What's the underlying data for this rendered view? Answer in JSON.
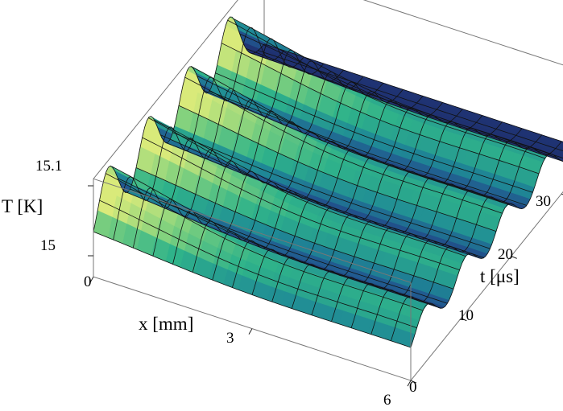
{
  "chart_data": {
    "type": "surface-3d",
    "title": "",
    "xlabel": "x [mm]",
    "ylabel": "t [μs]",
    "zlabel": "T [K]",
    "x_ticks": [
      "0",
      "3",
      "6"
    ],
    "y_ticks": [
      "0",
      "10",
      "20",
      "30"
    ],
    "z_ticks": [
      "15",
      "15.1"
    ],
    "xlim": [
      0,
      6
    ],
    "ylim": [
      0,
      34
    ],
    "zlim": [
      14.97,
      15.11
    ],
    "mesh": true,
    "colormap": [
      "#1f2a6b",
      "#21568f",
      "#1f8a96",
      "#2fb38a",
      "#7ed07e",
      "#d9ea7a"
    ],
    "description_values": {
      "baseline_T": 15.0,
      "peak_T": 15.1,
      "ridges_at_t_us": [
        3,
        11,
        19,
        27
      ]
    }
  }
}
